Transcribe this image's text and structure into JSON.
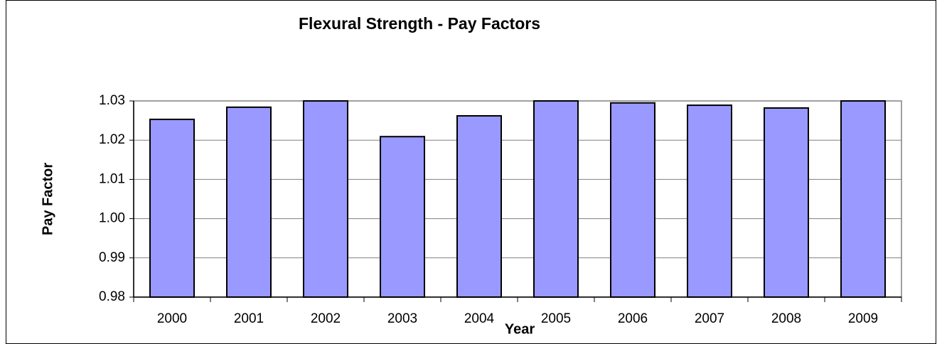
{
  "chart_data": {
    "type": "bar",
    "title": "Flexural Strength - Pay Factors",
    "x_label": "Year",
    "y_label": "Pay Factor",
    "categories": [
      "2000",
      "2001",
      "2002",
      "2003",
      "2004",
      "2005",
      "2006",
      "2007",
      "2008",
      "2009"
    ],
    "values": [
      1.0253,
      1.0284,
      1.03,
      1.0209,
      1.0262,
      1.03,
      1.0295,
      1.0289,
      1.0282,
      1.03
    ],
    "color": "#9999ff",
    "ylim": [
      0.98,
      1.03
    ],
    "yticks": [
      0.98,
      0.99,
      {
        "value": 1.0,
        "label": "1.00"
      },
      1.01,
      1.02,
      1.03
    ],
    "grid": true
  }
}
